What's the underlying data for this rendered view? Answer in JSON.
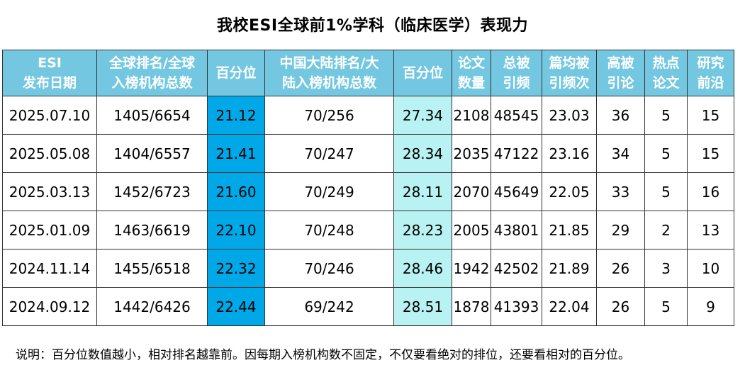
{
  "title": "我校ESI全球前1%学科（临床医学）表现力",
  "headers": [
    [
      "ESI",
      "发布日期"
    ],
    [
      "全球排名/全球",
      "入榜机构总数"
    ],
    [
      "百分位"
    ],
    [
      "中国大陆排名/大",
      "陆入榜机构总数"
    ],
    [
      "百分位"
    ],
    [
      "论文",
      "数量"
    ],
    [
      "总被",
      "引频"
    ],
    [
      "篇均被",
      "引频次"
    ],
    [
      "高被",
      "引论"
    ],
    [
      "热点",
      "论文"
    ],
    [
      "研究",
      "前沿"
    ]
  ],
  "rows": [
    [
      "2025.07.10",
      "1405/6654",
      "21.12",
      "70/256",
      "27.34",
      "2108",
      "48545",
      "23.03",
      "36",
      "5",
      "15"
    ],
    [
      "2025.05.08",
      "1404/6557",
      "21.41",
      "70/247",
      "28.34",
      "2035",
      "47122",
      "23.16",
      "34",
      "5",
      "15"
    ],
    [
      "2025.03.13",
      "1452/6723",
      "21.60",
      "70/249",
      "28.11",
      "2070",
      "45649",
      "22.05",
      "33",
      "5",
      "16"
    ],
    [
      "2025.01.09",
      "1463/6619",
      "22.10",
      "70/248",
      "28.23",
      "2005",
      "43801",
      "21.85",
      "29",
      "2",
      "13"
    ],
    [
      "2024.11.14",
      "1455/6518",
      "22.32",
      "70/246",
      "28.46",
      "1942",
      "42502",
      "21.89",
      "26",
      "3",
      "10"
    ],
    [
      "2024.09.12",
      "1442/6426",
      "22.44",
      "69/242",
      "28.51",
      "1878",
      "41393",
      "22.04",
      "26",
      "5",
      "9"
    ]
  ],
  "note": "说明：百分位数值越小，相对排名越靠前。因每期入榜机构数不固定，不仅要看绝对的排位，还要看相对的百分位。",
  "colors": {
    "header_bg": "#74C7E1",
    "global_percentile_bg": "#00A8E8",
    "mainland_percentile_bg": "#B8F2F2"
  }
}
